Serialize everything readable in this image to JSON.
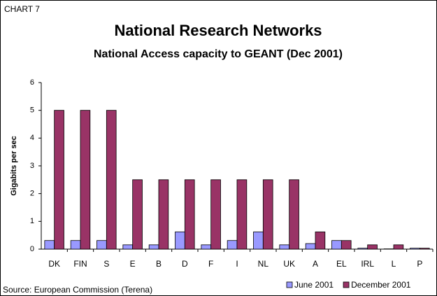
{
  "chart_data": {
    "type": "bar",
    "label": "CHART 7",
    "title": "National Research Networks",
    "subtitle": "National Access capacity to GEANT (Dec 2001)",
    "y_label": "Gigabits per sec",
    "source": "Source: European Commission (Terena)",
    "categories": [
      "DK",
      "FIN",
      "S",
      "E",
      "B",
      "D",
      "F",
      "I",
      "NL",
      "UK",
      "A",
      "EL",
      "IRL",
      "L",
      "P"
    ],
    "series": [
      {
        "name": "June 2001",
        "color": "#9999ff",
        "values": [
          0.31,
          0.31,
          0.31,
          0.155,
          0.155,
          0.622,
          0.155,
          0.31,
          0.622,
          0.155,
          0.2,
          0.31,
          0.034,
          0.01,
          0.034
        ]
      },
      {
        "name": "December 2001",
        "color": "#993366",
        "values": [
          5,
          5,
          5,
          2.5,
          2.5,
          2.5,
          2.5,
          2.5,
          2.5,
          2.5,
          0.622,
          0.31,
          0.155,
          0.155,
          0.034
        ]
      }
    ],
    "ylim": [
      0,
      6
    ],
    "yticks": [
      0,
      1,
      2,
      3,
      4,
      5,
      6
    ],
    "grid": false,
    "legend": "bottom-right"
  }
}
